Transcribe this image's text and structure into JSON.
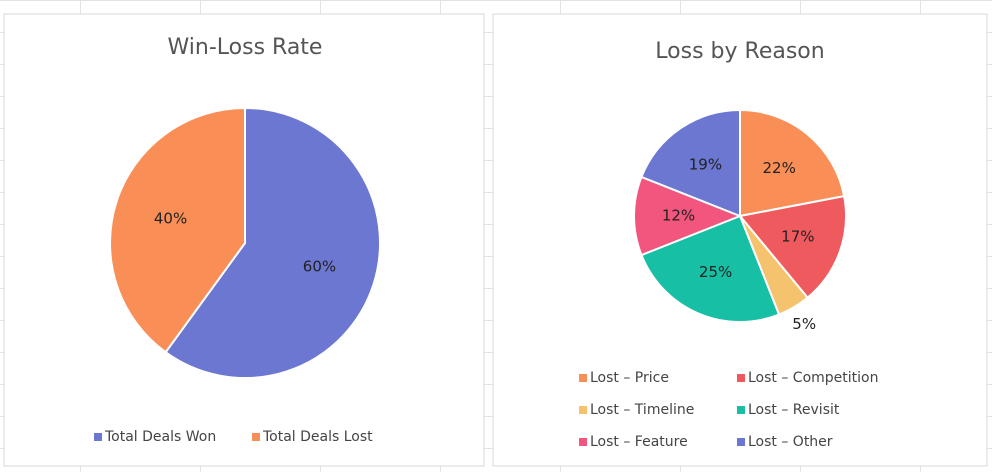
{
  "chart_data": [
    {
      "type": "pie",
      "title": "Win-Loss Rate",
      "categories": [
        "Total Deals Won",
        "Total Deals Lost"
      ],
      "values": [
        60,
        40
      ],
      "value_labels": [
        "60%",
        "40%"
      ],
      "colors": [
        "#6b77d1",
        "#f98f56"
      ]
    },
    {
      "type": "pie",
      "title": "Loss by Reason",
      "categories": [
        "Lost – Price",
        "Lost – Competition",
        "Lost – Timeline",
        "Lost – Revisit",
        "Lost – Feature",
        "Lost – Other"
      ],
      "values": [
        22,
        17,
        5,
        25,
        12,
        19
      ],
      "value_labels": [
        "22%",
        "17%",
        "5%",
        "25%",
        "12%",
        "19%"
      ],
      "colors": [
        "#f98f56",
        "#ef5a5f",
        "#f5c36d",
        "#17bfa5",
        "#f2557e",
        "#6b77d1"
      ]
    }
  ]
}
